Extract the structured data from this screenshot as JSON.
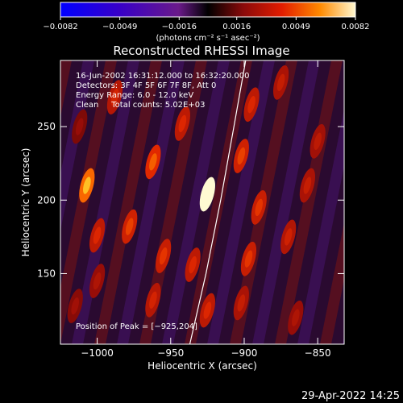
{
  "chart_data": {
    "type": "heatmap",
    "title": "Reconstructed RHESSI Image",
    "xlabel": "Heliocentric X (arcsec)",
    "ylabel": "Heliocentric Y (arcsec)",
    "xlim": [
      -1025,
      -832
    ],
    "ylim": [
      102,
      295
    ],
    "x_ticks": [
      -1000,
      -950,
      -900,
      -850
    ],
    "x_tick_labels": [
      "−1000",
      "−950",
      "−900",
      "−850"
    ],
    "y_ticks": [
      150,
      200,
      250
    ],
    "y_tick_labels": [
      "150",
      "200",
      "250"
    ],
    "colorbar": {
      "range": [
        -0.0082,
        0.0082
      ],
      "ticks": [
        -0.0082,
        -0.0049,
        -0.0016,
        0.0016,
        0.0049,
        0.0082
      ],
      "tick_labels": [
        "−0.0082",
        "−0.0049",
        "−0.0016",
        "0.0016",
        "0.0049",
        "0.0082"
      ],
      "units_label": "(photons cm⁻² s⁻¹ asec⁻²)"
    },
    "annotations": [
      "16-Jun-2002 16:31:12.000 to 16:32:20.000",
      "Detectors: 3F 4F 5F 6F 7F 8F, Att 0",
      "Energy Range: 6.0 - 12.0 keV",
      "Clean     Total counts: 5.02E+03"
    ],
    "peak_label": "Position of Peak = [−925,204]",
    "peak": {
      "x": -925,
      "y": 204,
      "value": 0.0082
    },
    "blobs": [
      {
        "x": -925,
        "y": 204,
        "value": 0.0082
      },
      {
        "x": -1007,
        "y": 210,
        "value": 0.0058
      },
      {
        "x": -962,
        "y": 226,
        "value": 0.0045
      },
      {
        "x": -978,
        "y": 182,
        "value": 0.004
      },
      {
        "x": -1000,
        "y": 176,
        "value": 0.0035
      },
      {
        "x": -955,
        "y": 162,
        "value": 0.0038
      },
      {
        "x": -935,
        "y": 156,
        "value": 0.0035
      },
      {
        "x": -942,
        "y": 252,
        "value": 0.0035
      },
      {
        "x": -902,
        "y": 230,
        "value": 0.004
      },
      {
        "x": -895,
        "y": 265,
        "value": 0.0035
      },
      {
        "x": -890,
        "y": 195,
        "value": 0.0038
      },
      {
        "x": -897,
        "y": 160,
        "value": 0.0038
      },
      {
        "x": -870,
        "y": 175,
        "value": 0.0032
      },
      {
        "x": -857,
        "y": 210,
        "value": 0.003
      },
      {
        "x": -850,
        "y": 240,
        "value": 0.0028
      },
      {
        "x": -902,
        "y": 130,
        "value": 0.003
      },
      {
        "x": -925,
        "y": 125,
        "value": 0.0035
      },
      {
        "x": -865,
        "y": 120,
        "value": 0.0025
      },
      {
        "x": -875,
        "y": 280,
        "value": 0.003
      },
      {
        "x": -988,
        "y": 270,
        "value": 0.0033
      },
      {
        "x": -1000,
        "y": 145,
        "value": 0.0025
      },
      {
        "x": -962,
        "y": 132,
        "value": 0.0033
      },
      {
        "x": -1015,
        "y": 128,
        "value": 0.0022
      },
      {
        "x": -1012,
        "y": 250,
        "value": 0.002
      }
    ],
    "limb_curve": [
      {
        "x": -937,
        "y": 102
      },
      {
        "x": -926,
        "y": 150
      },
      {
        "x": -916,
        "y": 200
      },
      {
        "x": -907,
        "y": 250
      },
      {
        "x": -899,
        "y": 295
      }
    ]
  },
  "timestamp": "29-Apr-2022 14:25"
}
